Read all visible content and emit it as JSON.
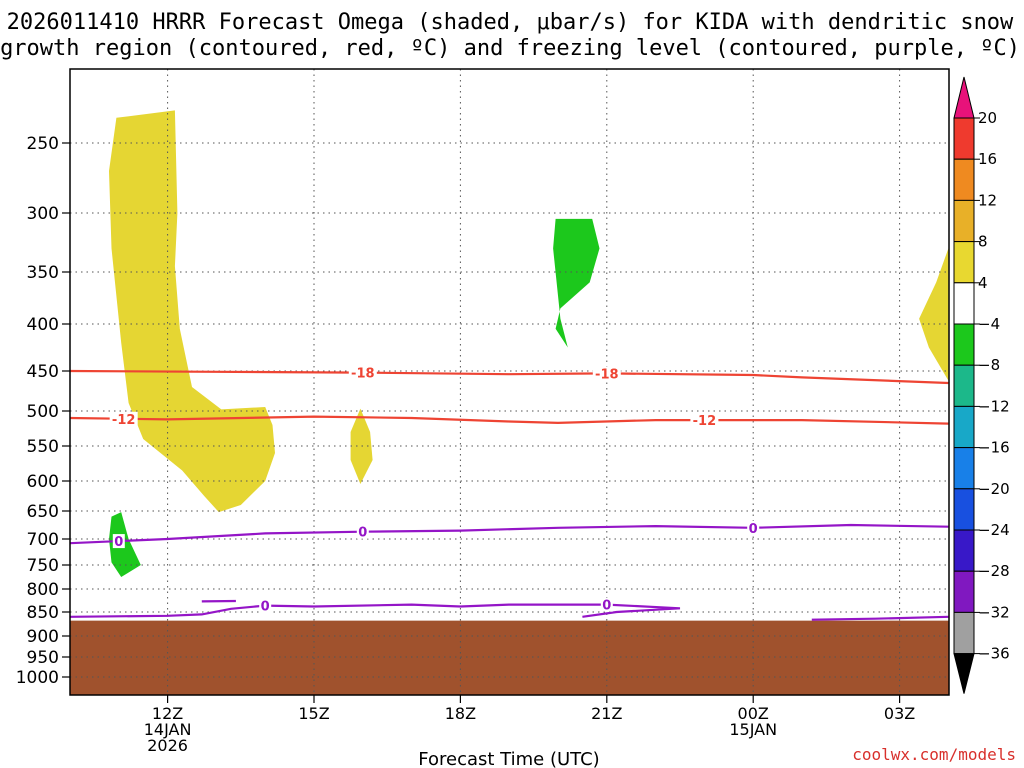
{
  "header": {
    "title_line1": "2026011410 HRRR Forecast Omega (shaded, μbar/s) for KIDA with dendritic snow",
    "title_line2": "growth region (contoured, red, ºC) and freezing level (contoured, purple, ºC)"
  },
  "footer": {
    "xaxis_title": "Forecast Time (UTC)",
    "credit": "coolwx.com/models"
  },
  "chart_data": {
    "type": "heatmap",
    "title": "2026011410 HRRR Forecast Omega (shaded, μbar/s) for KIDA with dendritic snow growth region (contoured, red, ºC) and freezing level (contoured, purple, ºC)",
    "xlabel": "Forecast Time (UTC)",
    "ylabel": "",
    "x_unit": "hours after 2026-01-14 10Z",
    "xlim": [
      0,
      18
    ],
    "y_scale": "pressure (log-like, inverted)",
    "ylim": [
      1040,
      200
    ],
    "grid": true,
    "y_ticks": [
      250,
      300,
      350,
      400,
      450,
      500,
      550,
      600,
      650,
      700,
      750,
      800,
      850,
      900,
      950,
      1000
    ],
    "x_ticks": [
      {
        "x": 2,
        "lines": [
          "12Z",
          "14JAN",
          "2026"
        ]
      },
      {
        "x": 5,
        "lines": [
          "15Z"
        ]
      },
      {
        "x": 8,
        "lines": [
          "18Z"
        ]
      },
      {
        "x": 11,
        "lines": [
          "21Z"
        ]
      },
      {
        "x": 14,
        "lines": [
          "00Z",
          "15JAN"
        ]
      },
      {
        "x": 17,
        "lines": [
          "03Z"
        ]
      }
    ],
    "colorbar": {
      "unit": "μbar/s",
      "levels": [
        "20",
        "16",
        "12",
        "8",
        "4",
        "−4",
        "−8",
        "−12",
        "−16",
        "−20",
        "−24",
        "−28",
        "−32",
        "−36"
      ],
      "colors": [
        "#e8127a",
        "#ef3a2e",
        "#ef8a20",
        "#e8b028",
        "#e8d830",
        "#ffffff",
        "#1cc81c",
        "#1cb88a",
        "#18a8c8",
        "#1880e8",
        "#1850e0",
        "#3818c8",
        "#8018c0",
        "#a0a0a0",
        "#000000"
      ]
    },
    "shaded_regions": [
      {
        "name": "omega 4 to 8 (upper-left plume)",
        "color": "#e5d633",
        "points": [
          [
            0.95,
            233
          ],
          [
            2.15,
            228
          ],
          [
            2.2,
            300
          ],
          [
            2.15,
            345
          ],
          [
            2.25,
            405
          ],
          [
            2.5,
            470
          ],
          [
            3.1,
            498
          ],
          [
            4.0,
            495
          ],
          [
            4.15,
            520
          ],
          [
            4.2,
            560
          ],
          [
            4.0,
            600
          ],
          [
            3.5,
            640
          ],
          [
            3.05,
            652
          ],
          [
            2.75,
            625
          ],
          [
            2.3,
            585
          ],
          [
            1.5,
            540
          ],
          [
            1.2,
            490
          ],
          [
            1.05,
            420
          ],
          [
            0.85,
            330
          ],
          [
            0.8,
            270
          ]
        ]
      },
      {
        "name": "omega 4 to 8 (mid small)",
        "color": "#e5d633",
        "points": [
          [
            5.95,
            497
          ],
          [
            6.15,
            530
          ],
          [
            6.2,
            570
          ],
          [
            5.95,
            605
          ],
          [
            5.75,
            570
          ],
          [
            5.75,
            530
          ]
        ]
      },
      {
        "name": "omega 4 to 8 (right edge)",
        "color": "#e5d633",
        "points": [
          [
            18,
            330
          ],
          [
            17.75,
            360
          ],
          [
            17.4,
            395
          ],
          [
            17.6,
            425
          ],
          [
            18,
            462
          ]
        ]
      },
      {
        "name": "omega -8 to -4 (upper-middle)",
        "color": "#1cc81c",
        "points": [
          [
            9.95,
            305
          ],
          [
            10.7,
            305
          ],
          [
            10.85,
            330
          ],
          [
            10.65,
            360
          ],
          [
            10.05,
            385
          ],
          [
            9.95,
            405
          ],
          [
            10.2,
            425
          ],
          [
            10.05,
            395
          ],
          [
            9.9,
            330
          ]
        ]
      },
      {
        "name": "omega -8 to -4 (low-left)",
        "color": "#1cc81c",
        "points": [
          [
            0.85,
            660
          ],
          [
            1.05,
            652
          ],
          [
            1.2,
            700
          ],
          [
            1.45,
            750
          ],
          [
            1.05,
            775
          ],
          [
            0.85,
            745
          ],
          [
            0.8,
            700
          ]
        ]
      }
    ],
    "ground": {
      "pressure_top": 868,
      "color": "#a0522d"
    },
    "series": [
      {
        "name": "-18",
        "color": "#ee4433",
        "x": [
          0,
          3,
          6,
          9,
          11,
          14,
          15,
          18
        ],
        "y": [
          450,
          451,
          452,
          454,
          453,
          455,
          458,
          465
        ],
        "labels": [
          {
            "x": 6,
            "text": "-18"
          },
          {
            "x": 11,
            "text": "-18"
          }
        ]
      },
      {
        "name": "-12",
        "color": "#ee4433",
        "x": [
          0,
          2,
          5,
          7,
          9,
          10,
          12,
          15,
          18
        ],
        "y": [
          510,
          512,
          508,
          510,
          515,
          517,
          513,
          513,
          518
        ],
        "labels": [
          {
            "x": 1.1,
            "text": "-12"
          },
          {
            "x": 13,
            "text": "-12"
          }
        ]
      },
      {
        "name": "0",
        "color": "#9415c7",
        "x": [
          0,
          2,
          4,
          6,
          8,
          10,
          12,
          14,
          16,
          18
        ],
        "y": [
          708,
          700,
          690,
          687,
          685,
          680,
          677,
          680,
          675,
          678
        ],
        "labels": [
          {
            "x": 1,
            "text": "0"
          },
          {
            "x": 6,
            "text": "0"
          },
          {
            "x": 14,
            "text": "0"
          }
        ]
      },
      {
        "name": "0",
        "color": "#9415c7",
        "x": [
          0,
          2,
          2.7,
          3.3,
          4.0,
          5,
          7,
          8,
          9,
          11,
          12.5,
          11.2,
          10.5
        ],
        "y": [
          860,
          858,
          855,
          843,
          836,
          838,
          834,
          838,
          834,
          834,
          842,
          850,
          860
        ],
        "labels": [
          {
            "x": 4.0,
            "text": "0"
          },
          {
            "x": 11,
            "text": "0"
          }
        ]
      },
      {
        "name": "0",
        "color": "#9415c7",
        "x": [
          2.7,
          3.4
        ],
        "y": [
          827,
          826
        ],
        "labels": []
      },
      {
        "name": "0",
        "color": "#9415c7",
        "x": [
          15.2,
          16.5,
          18
        ],
        "y": [
          866,
          864,
          860
        ],
        "labels": []
      }
    ]
  }
}
